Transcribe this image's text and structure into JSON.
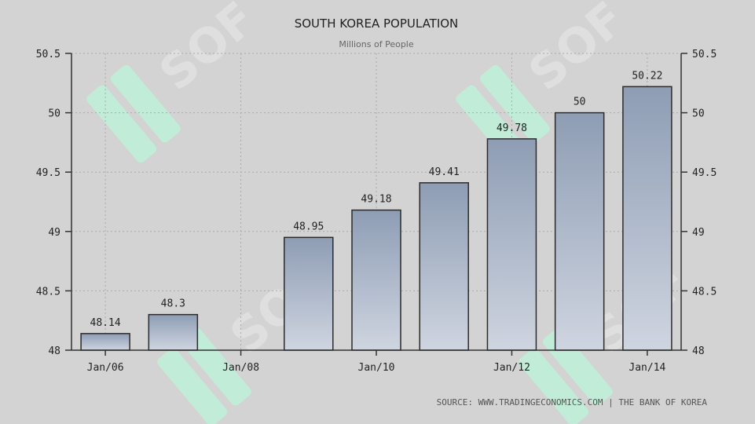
{
  "chart_data": {
    "type": "bar",
    "title": "SOUTH KOREA POPULATION",
    "subtitle": "Millions of People",
    "categories": [
      "2006",
      "2007",
      "2008",
      "2009",
      "2010",
      "2011",
      "2012",
      "2013",
      "2014"
    ],
    "x_tick_labels": [
      "Jan/06",
      "Jan/08",
      "Jan/10",
      "Jan/12",
      "Jan/14"
    ],
    "values": [
      48.14,
      48.3,
      null,
      48.95,
      49.18,
      49.41,
      49.78,
      50,
      50.22
    ],
    "data_labels": [
      "48.14",
      "48.3",
      "",
      "48.95",
      "49.18",
      "49.41",
      "49.78",
      "50",
      "50.22"
    ],
    "ylim": [
      48,
      50.5
    ],
    "y_ticks": [
      48,
      48.5,
      49,
      49.5,
      50,
      50.5
    ],
    "y_tick_labels": [
      "48",
      "48.5",
      "49",
      "49.5",
      "50",
      "50.5"
    ],
    "y_axis_both_sides": true,
    "grid": true,
    "source": "SOURCE: WWW.TRADINGECONOMICS.COM | THE BANK OF KOREA",
    "watermark_text": "SOF",
    "colors": {
      "background": "#d3d3d3",
      "bar_top": "#8e9db4",
      "bar_bottom": "#cfd5e0",
      "bar_stroke": "#2b2b2b",
      "grid": "#aaaaaa",
      "text": "#222222",
      "subtitle": "#666666",
      "watermark_green": "#bff0d8"
    }
  }
}
